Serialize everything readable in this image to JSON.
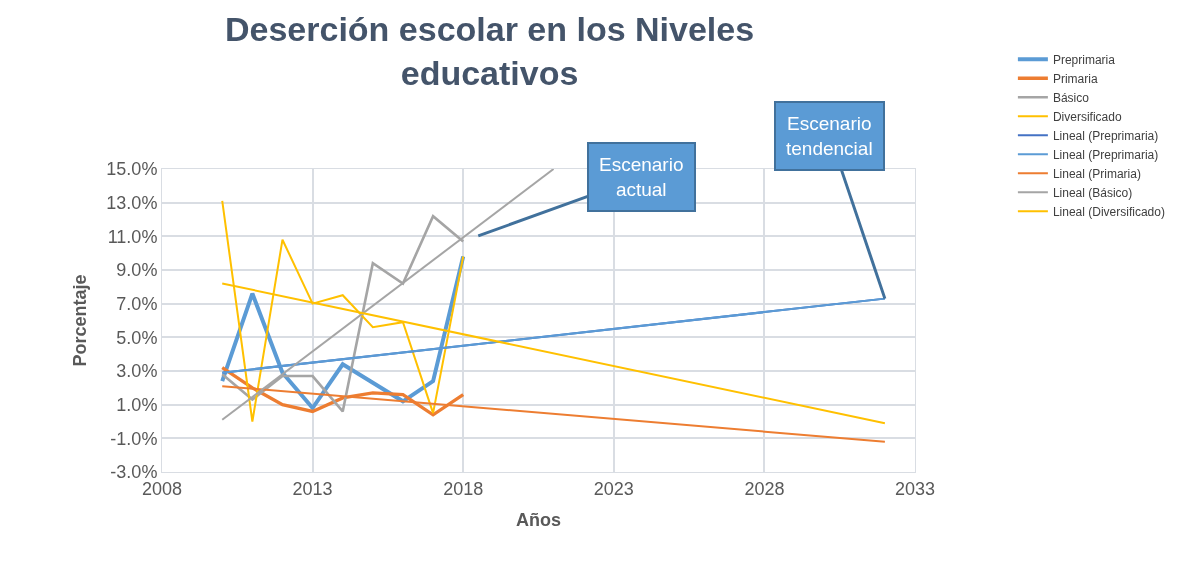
{
  "chart_data": {
    "type": "line",
    "title": "Deserción escolar en los Niveles educativos",
    "xlabel": "Años",
    "ylabel": "Porcentaje",
    "x": [
      2010,
      2011,
      2012,
      2013,
      2014,
      2015,
      2016,
      2017,
      2018
    ],
    "series": [
      {
        "name": "Preprimaria",
        "color": "#5b9bd5",
        "values": [
          2.4,
          7.6,
          2.9,
          0.8,
          3.4,
          2.3,
          1.2,
          2.4,
          9.8
        ]
      },
      {
        "name": "Primaria",
        "color": "#ed7d31",
        "values": [
          3.2,
          2.0,
          1.0,
          0.6,
          1.4,
          1.7,
          1.6,
          0.4,
          1.6
        ]
      },
      {
        "name": "Básico",
        "color": "#a5a5a5",
        "values": [
          2.8,
          1.3,
          2.7,
          2.7,
          0.6,
          9.4,
          8.2,
          12.2,
          10.7
        ]
      },
      {
        "name": "Diversificado",
        "color": "#ffc000",
        "values": [
          13.1,
          0.0,
          10.8,
          7.0,
          7.5,
          5.6,
          5.9,
          0.5,
          9.8
        ]
      },
      {
        "name": "Lineal (Preprimaria)",
        "color": "#4472c4",
        "x": [
          2010,
          2032
        ],
        "values": [
          2.9,
          7.3
        ]
      },
      {
        "name": "Lineal (Preprimaria)",
        "color": "#5b9bd5",
        "x": [
          2010,
          2032
        ],
        "values": [
          2.9,
          7.3
        ]
      },
      {
        "name": "Lineal (Primaria)",
        "color": "#ed7d31",
        "x": [
          2010,
          2032
        ],
        "values": [
          2.1,
          -1.2
        ]
      },
      {
        "name": "Lineal (Básico)",
        "color": "#a5a5a5",
        "x": [
          2010,
          2021
        ],
        "values": [
          0.1,
          15.0
        ]
      },
      {
        "name": "Lineal (Diversificado)",
        "color": "#ffc000",
        "x": [
          2010,
          2032
        ],
        "values": [
          8.2,
          -0.1
        ]
      }
    ],
    "xlim": [
      2008,
      2033
    ],
    "xticks": [
      2008,
      2013,
      2018,
      2023,
      2028,
      2033
    ],
    "ylim": [
      -3,
      15
    ],
    "yticks": [
      {
        "value": -3,
        "label": "-3.0%"
      },
      {
        "value": -1,
        "label": "-1.0%"
      },
      {
        "value": 1,
        "label": "1.0%"
      },
      {
        "value": 3,
        "label": "3.0%"
      },
      {
        "value": 5,
        "label": "5.0%"
      },
      {
        "value": 7,
        "label": "7.0%"
      },
      {
        "value": 9,
        "label": "9.0%"
      },
      {
        "value": 11,
        "label": "11.0%"
      },
      {
        "value": 13,
        "label": "13.0%"
      },
      {
        "value": 15,
        "label": "15.0%"
      }
    ],
    "grid": true,
    "legend": "top right",
    "annotations": [
      "Escenario actual",
      {
        "text": "Escenario tendencial",
        "x": 2032,
        "y": 7.3
      }
    ]
  }
}
